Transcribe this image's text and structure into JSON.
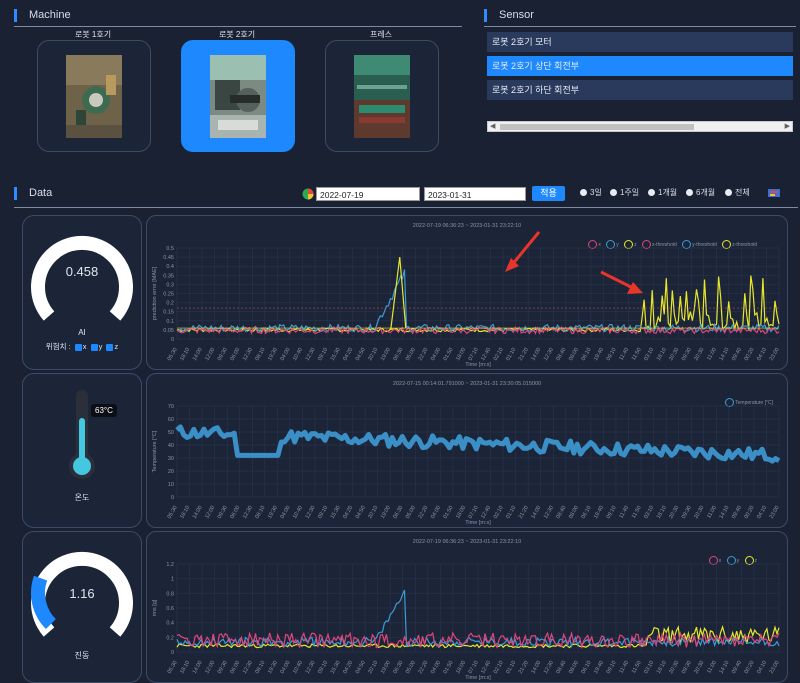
{
  "machine": {
    "title": "Machine",
    "items": [
      {
        "label": "로봇 1호기"
      },
      {
        "label": "로봇 2호기"
      },
      {
        "label": "프레스"
      }
    ]
  },
  "sensor": {
    "title": "Sensor",
    "items": [
      {
        "label": "로봇 2호기 모터"
      },
      {
        "label": "로봇 2호기 상단 회전부"
      },
      {
        "label": "로봇 2호기 하단 회전부"
      }
    ]
  },
  "data": {
    "title": "Data",
    "start_date": "2022-07-19",
    "end_date": "2023-01-31",
    "apply_label": "적용",
    "ranges": [
      "3일",
      "1주일",
      "1개월",
      "6개월",
      "전체"
    ]
  },
  "ai_gauge": {
    "value": "0.458",
    "label": "AI",
    "position_label": "위험치 :",
    "axes": [
      "x",
      "y",
      "z"
    ],
    "fraction": 0.46
  },
  "temp_gauge": {
    "value_badge": "63°C",
    "label": "온도"
  },
  "vib_gauge": {
    "value": "1.16",
    "label": "진동",
    "fraction": 0.24
  },
  "chart_data": [
    {
      "type": "line",
      "title": "2022-07-19 06:36:23 ~ 2023-01-31 23:22:10",
      "ylabel": "prediction error [MAE]",
      "xlabel": "Time [m:s]",
      "ylim": [
        0,
        0.5
      ],
      "yticks": [
        "0.5",
        "0.45",
        "0.4",
        "0.35",
        "0.3",
        "0.25",
        "0.2",
        "0.15",
        "0.1",
        "0.05",
        "0"
      ],
      "legend": [
        "x",
        "y",
        "z",
        "x-threshold",
        "y-threshold",
        "z-threshold"
      ],
      "colors": [
        "#e0457b",
        "#3e9bd6",
        "#e8e82a",
        "#e0457b",
        "#3e9bd6",
        "#e8e82a"
      ]
    },
    {
      "type": "scatter",
      "title": "2022-07-15 00:14:01.791000 ~ 2023-01-31 23:30:05.015000",
      "ylabel": "Temperature [°C]",
      "xlabel": "Time [m:s]",
      "ylim": [
        0,
        70
      ],
      "yticks": [
        "70",
        "60",
        "50",
        "40",
        "30",
        "20",
        "10",
        "0"
      ],
      "legend": [
        "Temperature [°C]"
      ],
      "colors": [
        "#3e9bd6"
      ]
    },
    {
      "type": "line",
      "title": "2022-07-19 06:36:23 ~ 2023-01-31 23:22:10",
      "ylabel": "rms [g]",
      "xlabel": "Time [m:s]",
      "ylim": [
        0,
        1.2
      ],
      "yticks": [
        "1.2",
        "1",
        "0.8",
        "0.6",
        "0.4",
        "0.2",
        "0"
      ],
      "legend": [
        "x",
        "y",
        "z"
      ],
      "colors": [
        "#e0457b",
        "#3e9bd6",
        "#e8e82a"
      ]
    }
  ],
  "time_ticks": [
    "05:30",
    "18:10",
    "14:00",
    "12:00",
    "09:30",
    "06:00",
    "12:30",
    "08:10",
    "19:30",
    "04:00",
    "10:40",
    "12:30",
    "09:10",
    "15:30",
    "04:20",
    "04:50",
    "20:10",
    "19:00",
    "06:30",
    "05:00",
    "22:20",
    "04:00",
    "01:50",
    "18:00",
    "07:10",
    "12:40",
    "02:10",
    "01:10",
    "21:20",
    "14:00",
    "12:30",
    "08:40",
    "08:00",
    "06:10",
    "19:40",
    "09:10",
    "11:40",
    "11:50",
    "03:10",
    "18:10",
    "20:30",
    "09:30",
    "20:30",
    "11:00",
    "14:10",
    "09:40",
    "00:20",
    "04:10",
    "23:00"
  ]
}
